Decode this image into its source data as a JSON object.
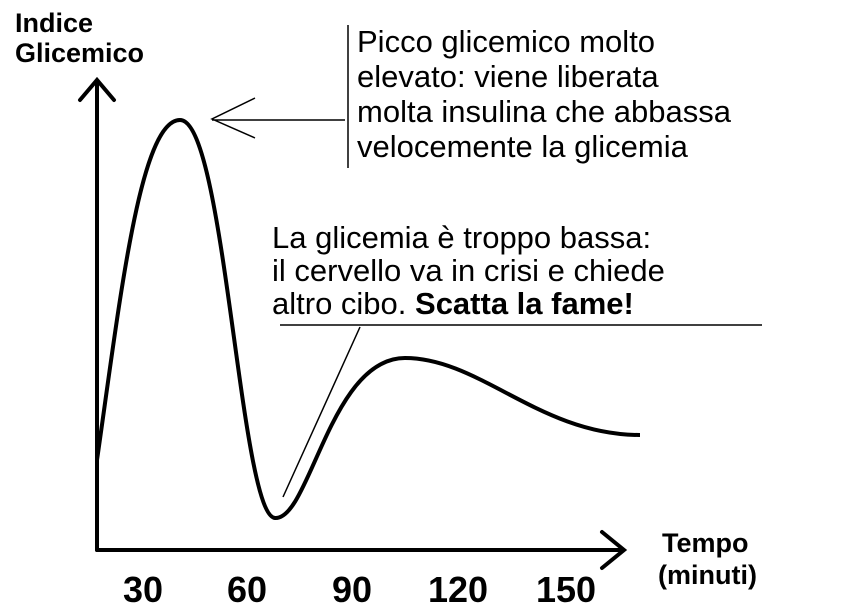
{
  "y_axis": {
    "label": [
      "Indice",
      "Glicemico"
    ]
  },
  "x_axis": {
    "label": [
      "Tempo",
      "(minuti)"
    ],
    "tick_labels": [
      "30",
      "60",
      "90",
      "120",
      "150"
    ]
  },
  "annotations": [
    {
      "lines": [
        "Picco glicemico molto",
        "elevato: viene liberata",
        "molta insulina che abbassa",
        "velocemente la glicemia"
      ]
    },
    {
      "lines": [
        "La glicemia è troppo bassa:",
        "il cervello va in crisi e chiede",
        "altro cibo. "
      ],
      "emphasis": "Scatta la fame!"
    }
  ]
}
